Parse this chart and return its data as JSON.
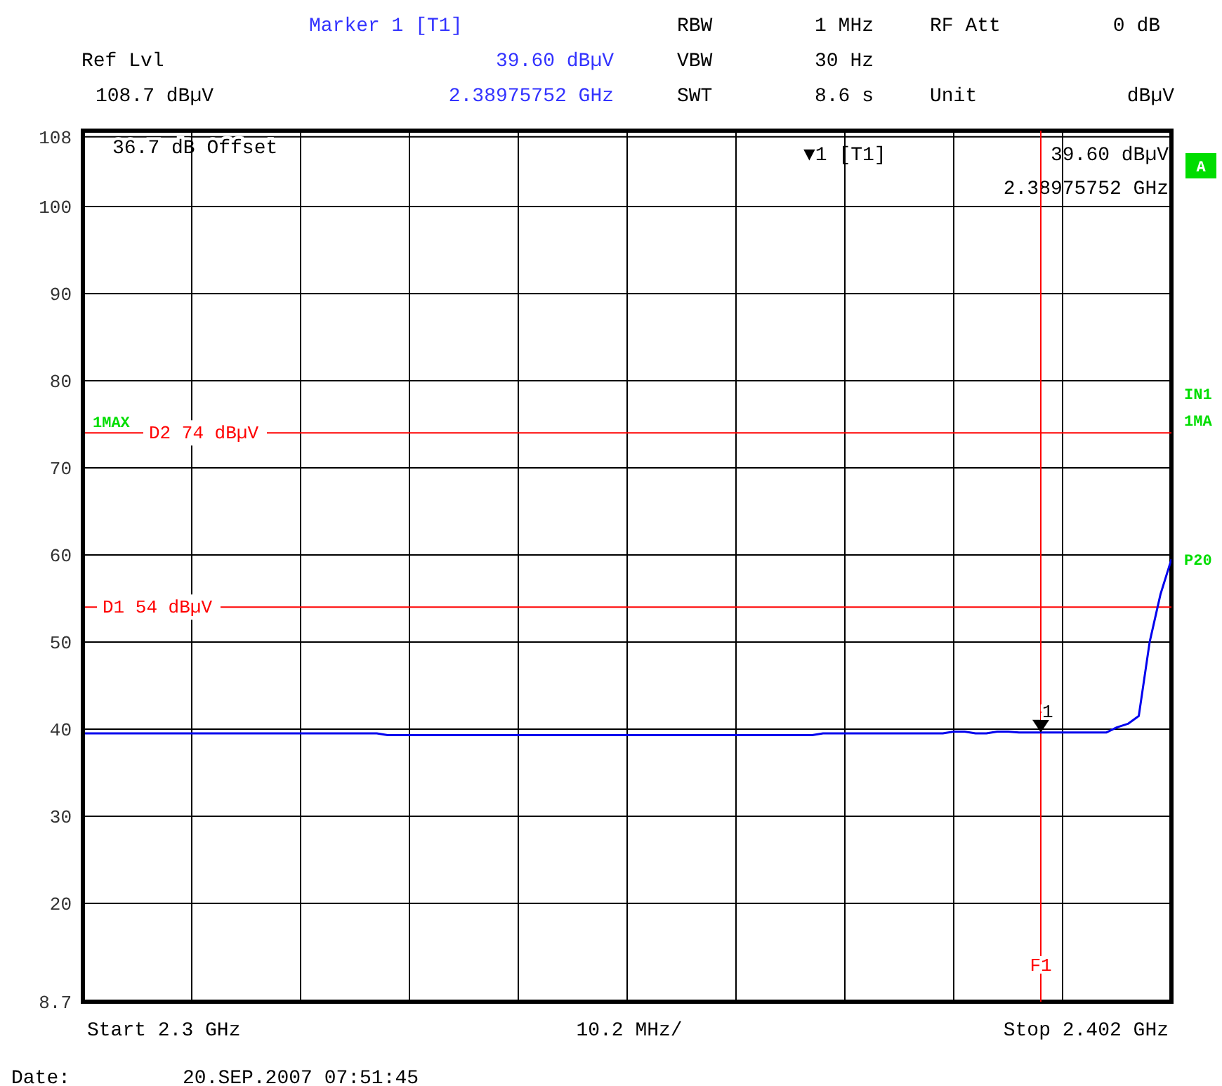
{
  "chart_data": {
    "type": "line",
    "categories": [
      null,
      null,
      null,
      null,
      null,
      null,
      null,
      null,
      null,
      null,
      null,
      null,
      null,
      null,
      null,
      null,
      null,
      null,
      null,
      null,
      null,
      null,
      null,
      null,
      null,
      null,
      null,
      null,
      null,
      null,
      null,
      null,
      null,
      null,
      null,
      null,
      null,
      null,
      null,
      null,
      null,
      null,
      null,
      null,
      null,
      null,
      null,
      null,
      null,
      null,
      null,
      null,
      null,
      null,
      null,
      null,
      null,
      null,
      null,
      null,
      null,
      null,
      null,
      null,
      null,
      null,
      null,
      null,
      null,
      null,
      null,
      null,
      null,
      null,
      null,
      null,
      null,
      null,
      null,
      null,
      null,
      null,
      null,
      null,
      null,
      null,
      null,
      null,
      null,
      null,
      null,
      null,
      null,
      null,
      null,
      null,
      null,
      null,
      null,
      null,
      null
    ],
    "ylim": [
      8.7,
      108.7
    ],
    "yticks": [
      {
        "value": 8.7,
        "label": "8.7"
      },
      20,
      30,
      40,
      50,
      60,
      70,
      80,
      90,
      100,
      108
    ],
    "tick_labels": "y",
    "grid": true,
    "marker": "none",
    "line_style": "solid",
    "series": [
      {
        "color": "#0000ee",
        "values": [
          39.5,
          39.5,
          39.5,
          39.5,
          39.5,
          39.5,
          39.5,
          39.5,
          39.5,
          39.5,
          39.5,
          39.5,
          39.5,
          39.5,
          39.5,
          39.5,
          39.5,
          39.5,
          39.5,
          39.5,
          39.5,
          39.5,
          39.5,
          39.5,
          39.5,
          39.5,
          39.5,
          39.5,
          39.3,
          39.3,
          39.3,
          39.3,
          39.3,
          39.3,
          39.3,
          39.3,
          39.3,
          39.3,
          39.3,
          39.3,
          39.3,
          39.3,
          39.3,
          39.3,
          39.3,
          39.3,
          39.3,
          39.3,
          39.3,
          39.3,
          39.3,
          39.3,
          39.3,
          39.3,
          39.3,
          39.3,
          39.3,
          39.3,
          39.3,
          39.3,
          39.3,
          39.3,
          39.3,
          39.3,
          39.3,
          39.3,
          39.3,
          39.3,
          39.5,
          39.5,
          39.5,
          39.5,
          39.5,
          39.5,
          39.5,
          39.5,
          39.5,
          39.5,
          39.5,
          39.5,
          39.7,
          39.7,
          39.5,
          39.5,
          39.7,
          39.7,
          39.6,
          39.6,
          39.6,
          39.6,
          39.6,
          39.6,
          39.6,
          39.6,
          39.6,
          40.2,
          40.6,
          41.5,
          50,
          55.5,
          59.5
        ]
      }
    ],
    "ref_lines": [
      {
        "axis": "y",
        "value": 74,
        "label": "D2 74 dBµV",
        "color": "#ff0000"
      },
      {
        "axis": "y",
        "value": 54,
        "label": "D1 54 dBµV",
        "color": "#ff0000"
      },
      {
        "axis": "x",
        "label": "F1",
        "color": "#ff0000"
      }
    ],
    "annotations": [
      "Marker 1 [T1]",
      "39.60 dBµV",
      "2.38975752 GHz",
      "Ref Lvl",
      "108.7 dBµV",
      "RBW",
      "1 MHz",
      "VBW",
      "30 Hz",
      "SWT",
      "8.6 s",
      "RF Att",
      "0 dB",
      "Unit",
      "dBµV",
      "36.7 dB Offset",
      "▼1 [T1]",
      "39.60 dBµV",
      "2.38975752 GHz",
      "A",
      "1MAX",
      "IN1",
      "1MA",
      "P20",
      "Start 2.3 GHz",
      "10.2 MHz/",
      "Stop 2.402 GHz",
      "Date:",
      "20.SEP.2007  07:51:45",
      {
        "text": "1",
        "y": 39.6
      }
    ]
  }
}
